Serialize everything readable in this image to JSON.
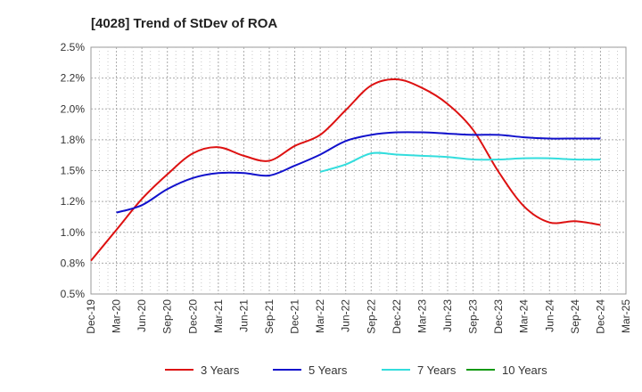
{
  "chart_data": {
    "type": "line",
    "title": "[4028]  Trend of StDev of ROA",
    "xlabel": "",
    "ylabel": "",
    "x_ticks": [
      "Dec-19",
      "Mar-20",
      "Jun-20",
      "Sep-20",
      "Dec-20",
      "Mar-21",
      "Jun-21",
      "Sep-21",
      "Dec-21",
      "Mar-22",
      "Jun-22",
      "Sep-22",
      "Dec-22",
      "Mar-23",
      "Jun-23",
      "Sep-23",
      "Dec-23",
      "Mar-24",
      "Jun-24",
      "Sep-24",
      "Dec-24",
      "Mar-25"
    ],
    "y_ticks": [
      "0.5%",
      "0.8%",
      "1.0%",
      "1.2%",
      "1.5%",
      "1.8%",
      "2.0%",
      "2.2%",
      "2.5%"
    ],
    "ylim": [
      0.5,
      2.5
    ],
    "grid": true,
    "legend_position": "bottom",
    "series": [
      {
        "name": "3 Years",
        "color": "#dd1111",
        "points": [
          [
            0,
            0.77
          ],
          [
            1,
            1.02
          ],
          [
            2,
            1.27
          ],
          [
            3,
            1.47
          ],
          [
            4,
            1.64
          ],
          [
            5,
            1.69
          ],
          [
            6,
            1.62
          ],
          [
            7,
            1.58
          ],
          [
            8,
            1.7
          ],
          [
            9,
            1.79
          ],
          [
            10,
            1.99
          ],
          [
            11,
            2.19
          ],
          [
            12,
            2.24
          ],
          [
            13,
            2.17
          ],
          [
            14,
            2.04
          ],
          [
            15,
            1.83
          ],
          [
            16,
            1.49
          ],
          [
            17,
            1.21
          ],
          [
            18,
            1.08
          ],
          [
            19,
            1.09
          ],
          [
            20,
            1.06
          ]
        ]
      },
      {
        "name": "5 Years",
        "color": "#1111cc",
        "points": [
          [
            1,
            1.16
          ],
          [
            2,
            1.22
          ],
          [
            3,
            1.35
          ],
          [
            4,
            1.44
          ],
          [
            5,
            1.48
          ],
          [
            6,
            1.48
          ],
          [
            7,
            1.46
          ],
          [
            8,
            1.54
          ],
          [
            9,
            1.63
          ],
          [
            10,
            1.74
          ],
          [
            11,
            1.79
          ],
          [
            12,
            1.81
          ],
          [
            13,
            1.81
          ],
          [
            14,
            1.8
          ],
          [
            15,
            1.79
          ],
          [
            16,
            1.79
          ],
          [
            17,
            1.77
          ],
          [
            18,
            1.76
          ],
          [
            19,
            1.76
          ],
          [
            20,
            1.76
          ]
        ]
      },
      {
        "name": "7 Years",
        "color": "#33dddd",
        "points": [
          [
            9,
            1.49
          ],
          [
            10,
            1.55
          ],
          [
            11,
            1.64
          ],
          [
            12,
            1.63
          ],
          [
            13,
            1.62
          ],
          [
            14,
            1.61
          ],
          [
            15,
            1.59
          ],
          [
            16,
            1.59
          ],
          [
            17,
            1.6
          ],
          [
            18,
            1.6
          ],
          [
            19,
            1.59
          ],
          [
            20,
            1.59
          ]
        ]
      },
      {
        "name": "10 Years",
        "color": "#119911",
        "points": []
      }
    ]
  }
}
